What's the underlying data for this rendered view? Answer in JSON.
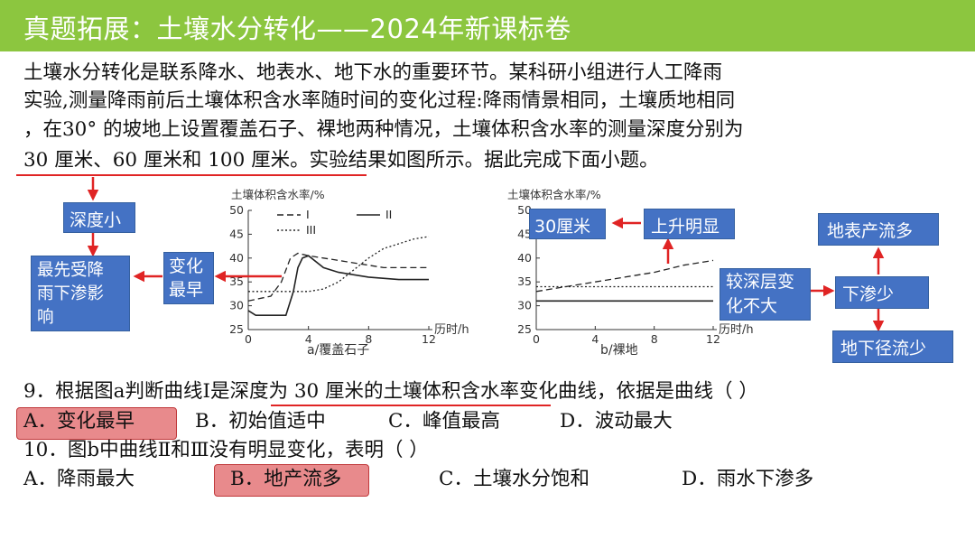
{
  "title": "真题拓展：土壤水分转化——2024年新课标卷",
  "paragraph": [
    "  土壤水分转化是联系降水、地表水、地下水的重要环节。某科研小组进行人工降雨",
    "实验,测量降雨前后土壤体积含水率随时间的变化过程:降雨情景相同，土壤质地相同",
    "，在30° 的坡地上设置覆盖石子、裸地两种情况，土壤体积含水率的测量深度分别为",
    "30 厘米、60 厘米和 100 厘米。实验结果如图所示。据此完成下面小题。"
  ],
  "annotations": {
    "shallow": "深度小",
    "first_affected": [
      "最先受降",
      "雨下渗影",
      "响"
    ],
    "change_earliest": [
      "变化",
      "最早"
    ],
    "cm30": "30厘米",
    "rise_obvious": "上升明显",
    "deep_little_change": [
      "较深层变",
      "化不大"
    ],
    "less_infiltration": "下渗少",
    "surface_runoff_more": "地表产流多",
    "subsurface_runoff_less": "地下径流少"
  },
  "chart_data": [
    {
      "type": "line",
      "ylabel": "土壤体积含水率/%",
      "xlabel": "历时/h",
      "caption": "a/覆盖石子",
      "xlim": [
        0,
        12
      ],
      "ylim": [
        25,
        50
      ],
      "xticks": [
        0,
        4,
        8,
        12
      ],
      "yticks": [
        25,
        30,
        35,
        40,
        45,
        50
      ],
      "series": [
        {
          "name": "I",
          "style": "dashed",
          "x": [
            0,
            1.5,
            2.2,
            2.8,
            3.3,
            4,
            5,
            6,
            7,
            8,
            9,
            10,
            11,
            12
          ],
          "y": [
            31,
            32,
            35,
            40,
            41,
            40.5,
            40,
            39.5,
            39,
            38.5,
            38,
            38,
            38,
            38
          ]
        },
        {
          "name": "II",
          "style": "solid",
          "x": [
            0,
            0.5,
            2.5,
            3,
            3.3,
            3.6,
            4,
            5,
            6,
            8,
            10,
            12
          ],
          "y": [
            29,
            28,
            28,
            33,
            38,
            40,
            40.5,
            38,
            37,
            36,
            35.5,
            35.5
          ]
        },
        {
          "name": "III",
          "style": "dotted",
          "x": [
            0,
            2,
            4,
            5,
            6,
            7,
            8,
            9,
            10,
            11,
            12
          ],
          "y": [
            33,
            33,
            33,
            33.5,
            35,
            37.5,
            40,
            42,
            43,
            44,
            44.5
          ]
        }
      ]
    },
    {
      "type": "line",
      "ylabel": "土壤体积含水率/%",
      "xlabel": "历时/h",
      "caption": "b/裸地",
      "xlim": [
        0,
        12
      ],
      "ylim": [
        25,
        50
      ],
      "xticks": [
        0,
        4,
        8,
        12
      ],
      "yticks": [
        25,
        30,
        35,
        40,
        45,
        50
      ],
      "series": [
        {
          "name": "I",
          "style": "dashed",
          "x": [
            0,
            2,
            4,
            6,
            8,
            10,
            12
          ],
          "y": [
            33,
            34,
            35,
            36,
            37,
            38.5,
            39.5
          ]
        },
        {
          "name": "II",
          "style": "solid",
          "x": [
            0,
            12
          ],
          "y": [
            31,
            31
          ]
        },
        {
          "name": "III",
          "style": "dotted",
          "x": [
            0,
            12
          ],
          "y": [
            34,
            34
          ]
        }
      ]
    }
  ],
  "questions": {
    "q9_stem": "9．根据图a判断曲线I是深度为 30 厘米的土壤体积含水率变化曲线，依据是曲线（     ）",
    "q9_options": [
      "A．变化最早",
      "B．初始值适中",
      "C．峰值最高",
      "D．波动最大"
    ],
    "q10_stem": "10．图b中曲线Ⅱ和Ⅲ没有明显变化，表明（     ）",
    "q10_options": [
      "A．降雨最大",
      "B．地产流多",
      "C．土壤水分饱和",
      "D．雨水下渗多"
    ]
  },
  "colors": {
    "title_bar": "#8cc63f",
    "box": "#4472c4",
    "arrow": "#e02424",
    "highlight": "#e88a8c"
  }
}
